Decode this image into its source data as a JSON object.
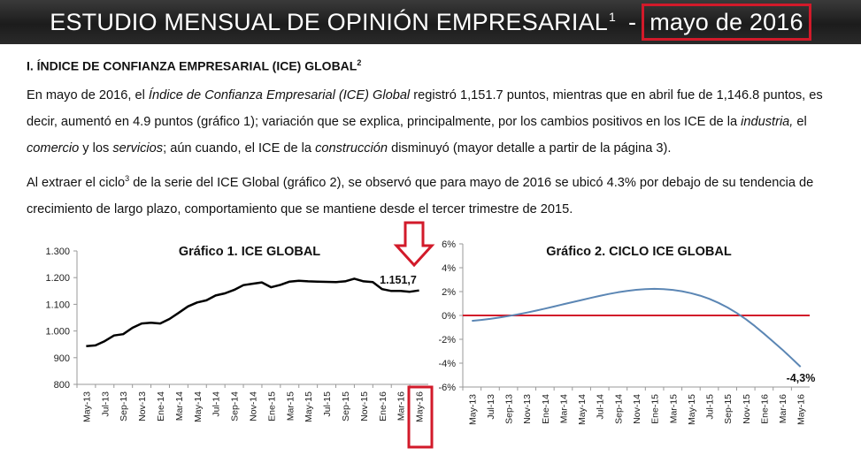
{
  "header": {
    "title": "ESTUDIO MENSUAL DE OPINIÓN EMPRESARIAL",
    "footnote": "1",
    "separator": "-",
    "period": "mayo de 2016"
  },
  "section": {
    "title": "I. ÍNDICE DE CONFIANZA EMPRESARIAL (ICE) GLOBAL",
    "footnote": "2"
  },
  "paragraph1": {
    "t1": "En mayo de 2016, el ",
    "t2": "Índice de Confianza Empresarial (ICE) Global",
    "t3": " registró 1,151.7 puntos, mientras que en abril fue de 1,146.8 puntos, es decir, aumentó en 4.9 puntos (gráfico 1); variación que se explica, principalmente, por los cambios positivos en los ICE de la ",
    "t4": "industria,",
    "t5": " el ",
    "t6": "comercio",
    "t7": " y los ",
    "t8": "servicios",
    "t9": "; aún cuando, el ICE de la ",
    "t10": "construcción",
    "t11": " disminuyó (mayor detalle a partir de la página 3)."
  },
  "paragraph2": {
    "t1": "Al extraer el ciclo",
    "footnote": "3",
    "t2": " de la serie del ICE Global (gráfico 2), se observó que para mayo de 2016 se ubicó 4.3% por debajo de su tendencia de crecimiento de largo plazo, comportamiento que se mantiene desde el tercer trimestre de 2015."
  },
  "chart_data": [
    {
      "type": "line",
      "title": "Gráfico 1. ICE GLOBAL",
      "y_ticks": [
        "1.300",
        "1.200",
        "1.100",
        "1.000",
        "900",
        "800"
      ],
      "ylim": [
        800,
        1300
      ],
      "x_labels": [
        "May-13",
        "Jul-13",
        "Sep-13",
        "Nov-13",
        "Ene-14",
        "Mar-14",
        "May-14",
        "Jul-14",
        "Sep-14",
        "Nov-14",
        "Ene-15",
        "Mar-15",
        "May-15",
        "Jul-15",
        "Sep-15",
        "Nov-15",
        "Ene-16",
        "Mar-16",
        "May-16"
      ],
      "series": [
        {
          "values": [
            943,
            946,
            962,
            983,
            988,
            1012,
            1028,
            1031,
            1028,
            1045,
            1068,
            1092,
            1107,
            1115,
            1133,
            1141,
            1154,
            1172,
            1177,
            1182,
            1164,
            1173,
            1185,
            1188,
            1186,
            1185,
            1184,
            1183,
            1186,
            1196,
            1186,
            1183,
            1157,
            1150,
            1150,
            1147,
            1152
          ]
        }
      ],
      "annotation": "1.151,7",
      "line_color": "#000000",
      "grid": false
    },
    {
      "type": "line",
      "title": "Gráfico 2. CICLO ICE GLOBAL",
      "y_ticks": [
        "6%",
        "4%",
        "2%",
        "0%",
        "-2%",
        "-4%",
        "-6%"
      ],
      "ylim": [
        -6,
        6
      ],
      "x_labels": [
        "May-13",
        "Jul-13",
        "Sep-13",
        "Nov-13",
        "Ene-14",
        "Mar-14",
        "May-14",
        "Jul-14",
        "Sep-14",
        "Nov-14",
        "Ene-15",
        "Mar-15",
        "May-15",
        "Jul-15",
        "Sep-15",
        "Nov-15",
        "Ene-16",
        "Mar-16",
        "May-16"
      ],
      "series": [
        {
          "values": [
            -0.45,
            -0.38,
            -0.29,
            -0.18,
            -0.05,
            0.09,
            0.24,
            0.4,
            0.57,
            0.75,
            0.93,
            1.11,
            1.29,
            1.47,
            1.64,
            1.8,
            1.94,
            2.06,
            2.15,
            2.21,
            2.23,
            2.21,
            2.14,
            2.03,
            1.87,
            1.66,
            1.39,
            1.06,
            0.67,
            0.21,
            -0.31,
            -0.9,
            -1.53,
            -2.19,
            -2.87,
            -3.58,
            -4.3
          ]
        }
      ],
      "reference_line": 0,
      "annotation": "-4,3%",
      "line_color": "#5b86b4",
      "reference_color": "#d21a2a",
      "grid": false
    }
  ]
}
